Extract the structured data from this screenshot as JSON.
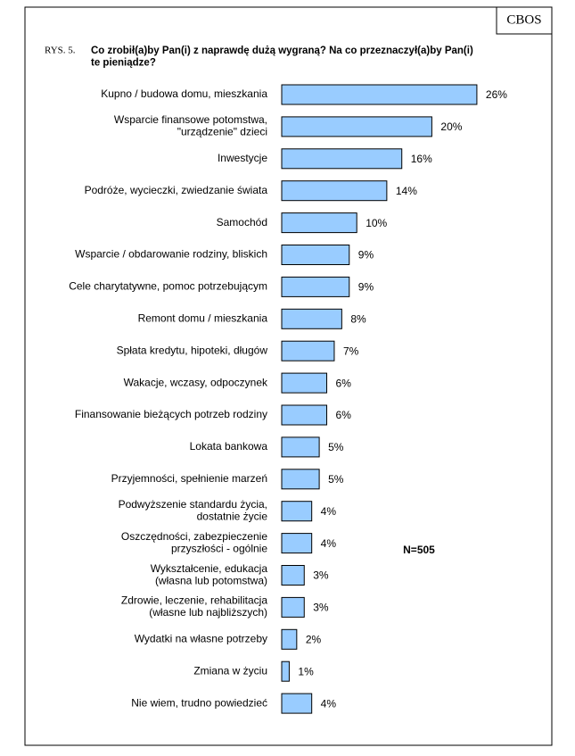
{
  "chart_data": {
    "type": "bar",
    "orientation": "horizontal",
    "source": "CBOS",
    "figure_label": "RYS. 5.",
    "title": "Co zrobił(a)by Pan(i) z naprawdę dużą wygraną? Na co przeznaczył(a)by Pan(i)\nte pieniądze?",
    "annotation": "N=505",
    "color": "#99ccff",
    "categories": [
      "Kupno / budowa domu, mieszkania",
      "Wsparcie finansowe potomstwa,\n\"urządzenie\" dzieci",
      "Inwestycje",
      "Podróże, wycieczki, zwiedzanie świata",
      "Samochód",
      "Wsparcie / obdarowanie rodziny, bliskich",
      "Cele charytatywne, pomoc potrzebującym",
      "Remont domu / mieszkania",
      "Spłata kredytu, hipoteki, długów",
      "Wakacje, wczasy, odpoczynek",
      "Finansowanie bieżących potrzeb rodziny",
      "Lokata bankowa",
      "Przyjemności, spełnienie marzeń",
      "Podwyższenie standardu życia,\ndostatnie życie",
      "Oszczędności, zabezpieczenie\nprzyszłości - ogólnie",
      "Wykształcenie, edukacja\n(własna lub potomstwa)",
      "Zdrowie, leczenie, rehabilitacja\n(własne lub najbliższych)",
      "Wydatki na własne potrzeby",
      "Zmiana w życiu",
      "Nie wiem, trudno powiedzieć"
    ],
    "values": [
      26,
      20,
      16,
      14,
      10,
      9,
      9,
      8,
      7,
      6,
      6,
      5,
      5,
      4,
      4,
      3,
      3,
      2,
      1,
      4
    ],
    "value_labels": [
      "26%",
      "20%",
      "16%",
      "14%",
      "10%",
      "9%",
      "9%",
      "8%",
      "7%",
      "6%",
      "6%",
      "5%",
      "5%",
      "4%",
      "4%",
      "3%",
      "3%",
      "2%",
      "1%",
      "4%"
    ]
  }
}
